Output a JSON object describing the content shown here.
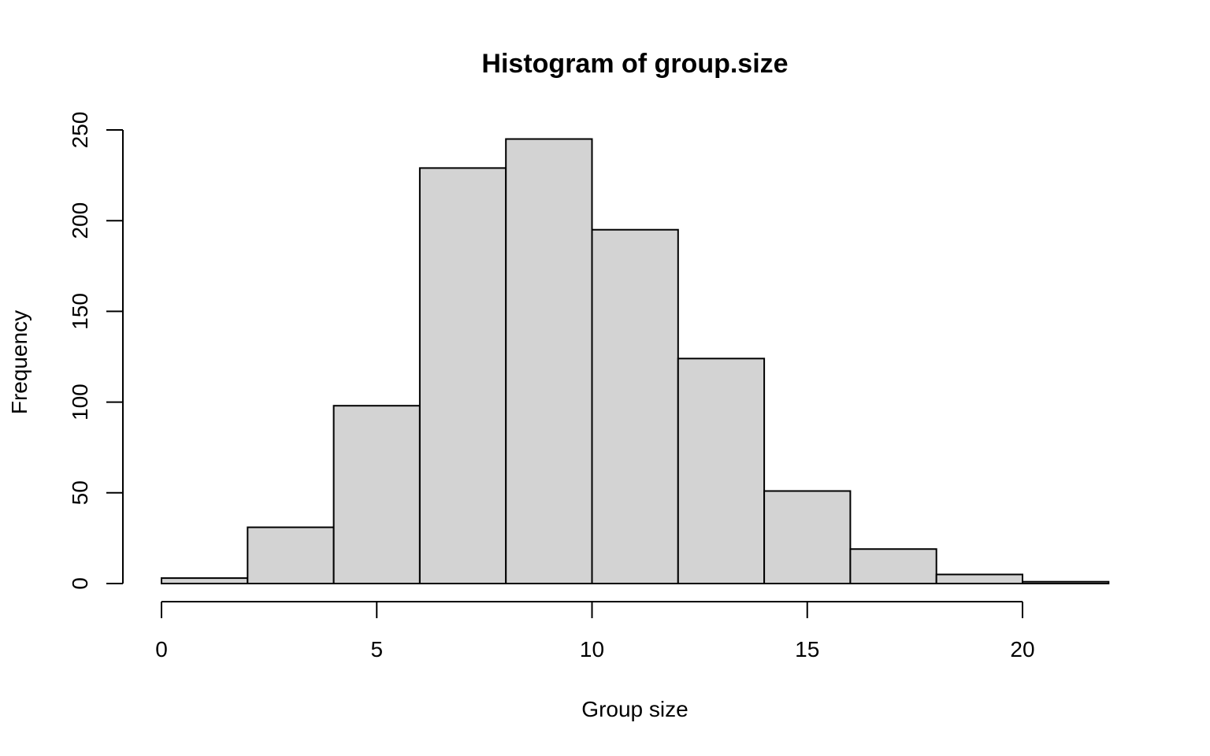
{
  "chart_data": {
    "type": "bar",
    "title": "Histogram of group.size",
    "xlabel": "Group size",
    "ylabel": "Frequency",
    "bins": [
      {
        "from": 0,
        "to": 2,
        "count": 3
      },
      {
        "from": 2,
        "to": 4,
        "count": 31
      },
      {
        "from": 4,
        "to": 6,
        "count": 98
      },
      {
        "from": 6,
        "to": 8,
        "count": 229
      },
      {
        "from": 8,
        "to": 10,
        "count": 245
      },
      {
        "from": 10,
        "to": 12,
        "count": 195
      },
      {
        "from": 12,
        "to": 14,
        "count": 124
      },
      {
        "from": 14,
        "to": 16,
        "count": 51
      },
      {
        "from": 16,
        "to": 18,
        "count": 19
      },
      {
        "from": 18,
        "to": 20,
        "count": 5
      },
      {
        "from": 20,
        "to": 22,
        "count": 1
      }
    ],
    "x_ticks": [
      0,
      5,
      10,
      15,
      20
    ],
    "y_ticks": [
      0,
      50,
      100,
      150,
      200,
      250
    ],
    "xlim": [
      0,
      22
    ],
    "ylim": [
      0,
      250
    ],
    "grid": false,
    "bar_color": "#d3d3d3",
    "edge_color": "#000000"
  }
}
